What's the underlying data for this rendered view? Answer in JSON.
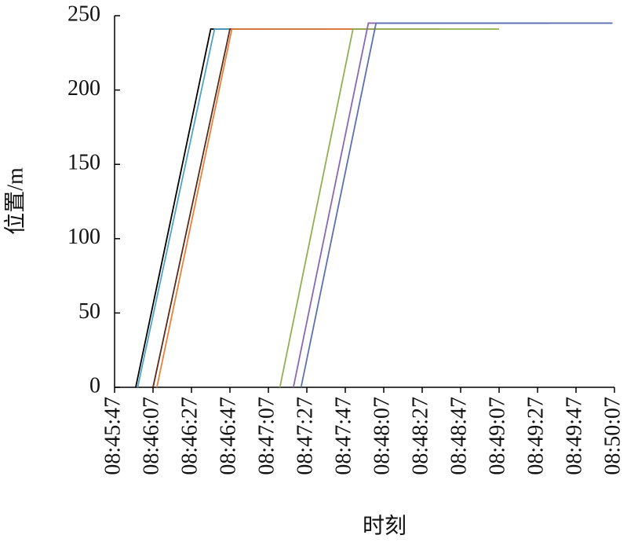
{
  "chart_data": {
    "type": "line",
    "x_label": "时刻",
    "y_label": "位置/m",
    "xlim": [
      31547,
      31807
    ],
    "ylim": [
      0,
      250
    ],
    "xticks": [
      {
        "value": 31547,
        "label": "08:45:47"
      },
      {
        "value": 31567,
        "label": "08:46:07"
      },
      {
        "value": 31587,
        "label": "08:46:27"
      },
      {
        "value": 31607,
        "label": "08:46:47"
      },
      {
        "value": 31627,
        "label": "08:47:07"
      },
      {
        "value": 31647,
        "label": "08:47:27"
      },
      {
        "value": 31667,
        "label": "08:47:47"
      },
      {
        "value": 31687,
        "label": "08:48:07"
      },
      {
        "value": 31707,
        "label": "08:48:27"
      },
      {
        "value": 31727,
        "label": "08:48:47"
      },
      {
        "value": 31747,
        "label": "08:49:07"
      },
      {
        "value": 31767,
        "label": "08:49:27"
      },
      {
        "value": 31787,
        "label": "08:49:47"
      },
      {
        "value": 31807,
        "label": "08:50:07"
      }
    ],
    "yticks": [
      0,
      50,
      100,
      150,
      200,
      250
    ],
    "series": [
      {
        "color": "#000000",
        "x": [
          31558,
          31597,
          31627
        ],
        "values": [
          0,
          241,
          241
        ]
      },
      {
        "color": "#4fa3c7",
        "x": [
          31559,
          31599,
          31657
        ],
        "values": [
          0,
          241,
          241
        ]
      },
      {
        "color": "#5a2a1a",
        "x": [
          31567,
          31607,
          31683
        ],
        "values": [
          0,
          241,
          241
        ]
      },
      {
        "color": "#e8803a",
        "x": [
          31569,
          31608,
          31716
        ],
        "values": [
          0,
          241,
          241
        ]
      },
      {
        "color": "#8fb050",
        "x": [
          31633,
          31671,
          31747
        ],
        "values": [
          0,
          241,
          241
        ]
      },
      {
        "color": "#8a68b0",
        "x": [
          31640,
          31679,
          31773
        ],
        "values": [
          0,
          245,
          245
        ]
      },
      {
        "color": "#5b70b0",
        "x": [
          31644,
          31683,
          31806
        ],
        "values": [
          0,
          245,
          245
        ]
      }
    ]
  }
}
